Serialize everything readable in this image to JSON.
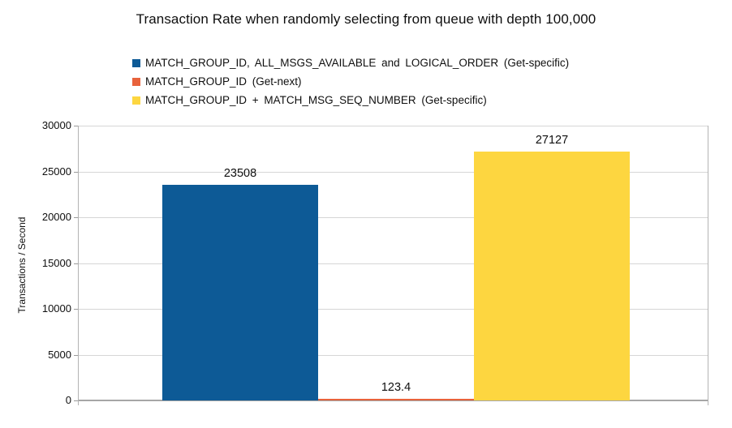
{
  "chart_data": {
    "type": "bar",
    "title": "Transaction Rate when randomly selecting from queue with depth 100,000",
    "xlabel": "",
    "ylabel": "Transactions / Second",
    "ylim": [
      0,
      30000
    ],
    "yticks": [
      0,
      5000,
      10000,
      15000,
      20000,
      25000,
      30000
    ],
    "grid": true,
    "legend_position": "top-left",
    "series": [
      {
        "name": "MATCH_GROUP_ID, ALL_MSGS_AVAILABLE and LOGICAL_ORDER (Get-specific)",
        "value": 23508,
        "label": "23508",
        "color": "#0d5a96"
      },
      {
        "name": "MATCH_GROUP_ID (Get-next)",
        "value": 123.4,
        "label": "123.4",
        "color": "#e8633c"
      },
      {
        "name": "MATCH_GROUP_ID + MATCH_MSG_SEQ_NUMBER (Get-specific)",
        "value": 27127,
        "label": "27127",
        "color": "#fdd640"
      }
    ],
    "colors": {
      "gridline": "#d6d6d6",
      "axis": "#b3b3b3",
      "baseline": "#a6a6a6",
      "tick": "#9a9a9a"
    }
  }
}
